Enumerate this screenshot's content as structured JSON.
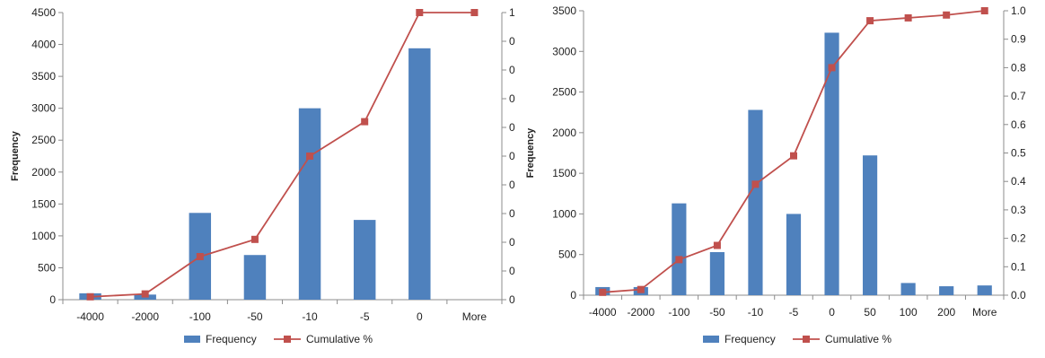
{
  "colors": {
    "bar": "#4f81bd",
    "line": "#c0504d",
    "axis": "#8c8c8c"
  },
  "chart_data": [
    {
      "type": "bar",
      "categories": [
        "-4000",
        "-2000",
        "-100",
        "-50",
        "-10",
        "-5",
        "0",
        "More"
      ],
      "series": [
        {
          "name": "Frequency",
          "type": "bar",
          "axis": "left",
          "values": [
            100,
            80,
            1360,
            700,
            3000,
            1250,
            3940,
            0
          ]
        },
        {
          "name": "Cumulative %",
          "type": "line",
          "axis": "right",
          "values": [
            0.01,
            0.02,
            0.15,
            0.21,
            0.5,
            0.62,
            1.0,
            1.0
          ]
        }
      ],
      "ylabel": "Frequency",
      "ylim": [
        0,
        4500
      ],
      "yticks": [
        "0",
        "500",
        "1000",
        "1500",
        "2000",
        "2500",
        "3000",
        "3500",
        "4000",
        "4500"
      ],
      "y2lim": [
        0,
        1.0
      ],
      "y2ticks": [
        "0",
        "0",
        "0",
        "0",
        "0",
        "0",
        "0",
        "0",
        "0",
        "0",
        "1"
      ],
      "legend": [
        "Frequency",
        "Cumulative %"
      ],
      "legend_position": "bottom"
    },
    {
      "type": "bar",
      "categories": [
        "-4000",
        "-2000",
        "-100",
        "-50",
        "-10",
        "-5",
        "0",
        "50",
        "100",
        "200",
        "More"
      ],
      "series": [
        {
          "name": "Frequency",
          "type": "bar",
          "axis": "left",
          "values": [
            100,
            100,
            1130,
            530,
            2280,
            1000,
            3230,
            1720,
            150,
            110,
            120
          ]
        },
        {
          "name": "Cumulative %",
          "type": "line",
          "axis": "right",
          "values": [
            0.01,
            0.02,
            0.125,
            0.175,
            0.39,
            0.49,
            0.8,
            0.965,
            0.975,
            0.985,
            1.0
          ]
        }
      ],
      "ylabel": "Frequency",
      "ylim": [
        0,
        3500
      ],
      "yticks": [
        "0",
        "500",
        "1000",
        "1500",
        "2000",
        "2500",
        "3000",
        "3500"
      ],
      "y2lim": [
        0,
        1.0
      ],
      "y2ticks": [
        "0.0",
        "0.1",
        "0.2",
        "0.3",
        "0.4",
        "0.5",
        "0.6",
        "0.7",
        "0.8",
        "0.9",
        "1.0"
      ],
      "legend": [
        "Frequency",
        "Cumulative %"
      ],
      "legend_position": "bottom"
    }
  ]
}
